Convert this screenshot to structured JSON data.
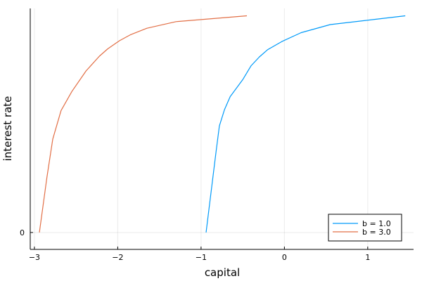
{
  "chart_data": {
    "type": "line",
    "xlabel": "capital",
    "ylabel": "interest rate",
    "xlim": [
      -3.05,
      1.55
    ],
    "ylim": [
      -0.0023,
      0.0305
    ],
    "x_ticks": [
      {
        "value": -3,
        "label": "−3"
      },
      {
        "value": -2,
        "label": "−2"
      },
      {
        "value": -1,
        "label": "−1"
      },
      {
        "value": 0,
        "label": "0"
      },
      {
        "value": 1,
        "label": "1"
      }
    ],
    "y_ticks": [
      {
        "value": 0,
        "label": "0"
      }
    ],
    "grid": true,
    "legend_position": "bottom-right",
    "series": [
      {
        "name": "b = 1.0",
        "color": "#009af9",
        "points": [
          [
            -0.94,
            0.0
          ],
          [
            -0.88,
            0.0055
          ],
          [
            -0.82,
            0.011
          ],
          [
            -0.78,
            0.0145
          ],
          [
            -0.72,
            0.0167
          ],
          [
            -0.65,
            0.0185
          ],
          [
            -0.5,
            0.0208
          ],
          [
            -0.4,
            0.0227
          ],
          [
            -0.3,
            0.0239
          ],
          [
            -0.2,
            0.0249
          ],
          [
            -0.03,
            0.026
          ],
          [
            0.2,
            0.0272
          ],
          [
            0.55,
            0.0283
          ],
          [
            1.45,
            0.0295
          ]
        ]
      },
      {
        "name": "b = 3.0",
        "color": "#e26f46",
        "points": [
          [
            -2.94,
            0.0
          ],
          [
            -2.85,
            0.0075
          ],
          [
            -2.78,
            0.0127
          ],
          [
            -2.68,
            0.0166
          ],
          [
            -2.55,
            0.0192
          ],
          [
            -2.38,
            0.022
          ],
          [
            -2.22,
            0.024
          ],
          [
            -2.12,
            0.025
          ],
          [
            -1.98,
            0.0261
          ],
          [
            -1.85,
            0.0269
          ],
          [
            -1.65,
            0.0278
          ],
          [
            -1.3,
            0.0287
          ],
          [
            -0.45,
            0.0295
          ]
        ]
      }
    ]
  }
}
